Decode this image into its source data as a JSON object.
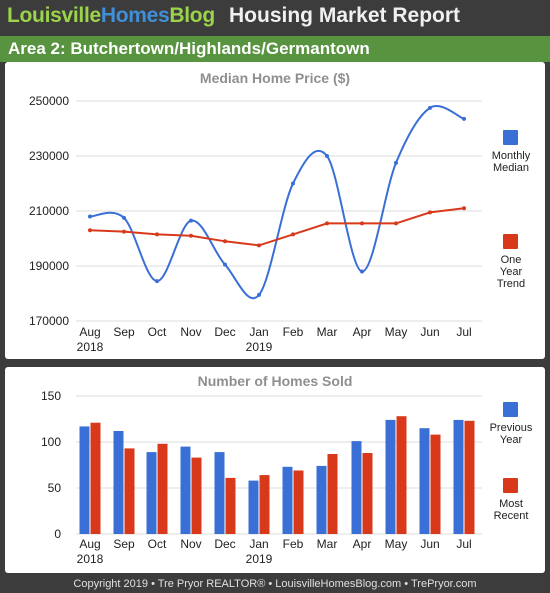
{
  "header": {
    "brand_part1": "Louisville",
    "brand_part2": "Homes",
    "brand_part3": "Blog",
    "report_title": "Housing Market Report",
    "area_title": "Area 2: Butchertown/Highlands/Germantown"
  },
  "colors": {
    "blue": "#3a6fd6",
    "red": "#d9391b",
    "green_bar": "#58933f",
    "brand_green": "#9bd34a",
    "brand_blue": "#3f8fd9"
  },
  "months": [
    "Aug",
    "Sep",
    "Oct",
    "Nov",
    "Dec",
    "Jan",
    "Feb",
    "Mar",
    "Apr",
    "May",
    "Jun",
    "Jul"
  ],
  "year_labels": [
    {
      "index": 0,
      "text": "2018"
    },
    {
      "index": 5,
      "text": "2019"
    }
  ],
  "chart_data": [
    {
      "type": "line",
      "title": "Median Home Price ($)",
      "categories": [
        "Aug",
        "Sep",
        "Oct",
        "Nov",
        "Dec",
        "Jan",
        "Feb",
        "Mar",
        "Apr",
        "May",
        "Jun",
        "Jul"
      ],
      "yticks": [
        170000,
        190000,
        210000,
        230000,
        250000
      ],
      "ylim": [
        170000,
        250000
      ],
      "grid": true,
      "legend_position": "right",
      "series": [
        {
          "name": "Monthly Median",
          "color": "#3a6fd6",
          "smooth": true,
          "values": [
            208000,
            207500,
            184500,
            206500,
            190500,
            179500,
            220000,
            230000,
            188000,
            227500,
            247500,
            243500
          ]
        },
        {
          "name": "One Year Trend",
          "color": "#d9391b",
          "smooth": false,
          "values": [
            203000,
            202500,
            201500,
            201000,
            199000,
            197500,
            201500,
            205500,
            205500,
            205500,
            209500,
            211000
          ]
        }
      ],
      "legend": [
        {
          "lines": [
            "Monthly",
            "Median"
          ],
          "color": "#3a6fd6"
        },
        {
          "lines": [
            "One",
            "Year",
            "Trend"
          ],
          "color": "#d9391b"
        }
      ]
    },
    {
      "type": "bar",
      "title": "Number of Homes Sold",
      "categories": [
        "Aug",
        "Sep",
        "Oct",
        "Nov",
        "Dec",
        "Jan",
        "Feb",
        "Mar",
        "Apr",
        "May",
        "Jun",
        "Jul"
      ],
      "yticks": [
        0,
        50,
        100,
        150
      ],
      "ylim": [
        0,
        150
      ],
      "grid": true,
      "legend_position": "right",
      "series": [
        {
          "name": "Previous Year",
          "color": "#3a6fd6",
          "values": [
            117,
            112,
            89,
            95,
            89,
            58,
            73,
            74,
            101,
            124,
            115,
            124
          ]
        },
        {
          "name": "Most Recent",
          "color": "#d9391b",
          "values": [
            121,
            93,
            98,
            83,
            61,
            64,
            69,
            87,
            88,
            128,
            108,
            123
          ]
        }
      ],
      "legend": [
        {
          "lines": [
            "Previous",
            "Year"
          ],
          "color": "#3a6fd6"
        },
        {
          "lines": [
            "Most",
            "Recent"
          ],
          "color": "#d9391b"
        }
      ]
    }
  ],
  "footer": {
    "text": "Copyright 2019 • Tre Pryor REALTOR® • LouisvilleHomesBlog.com • TrePryor.com"
  }
}
